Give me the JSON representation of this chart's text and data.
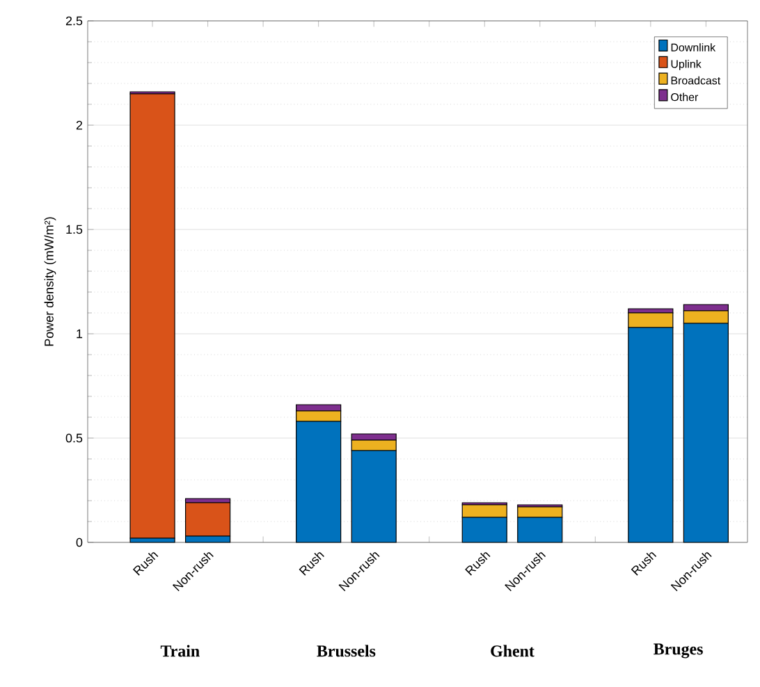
{
  "chart_data": {
    "type": "bar",
    "stacked": true,
    "ylabel": "Power density (mW/m²)",
    "categories": [
      "Rush",
      "Non-rush",
      null,
      "Rush",
      "Non-rush",
      null,
      "Rush",
      "Non-rush",
      null,
      "Rush",
      "Non-rush"
    ],
    "series": [
      {
        "name": "Downlink",
        "color": "#0072bd",
        "values": [
          0.02,
          0.03,
          null,
          0.58,
          0.44,
          null,
          0.12,
          0.12,
          null,
          1.03,
          1.05
        ]
      },
      {
        "name": "Uplink",
        "color": "#d95319",
        "values": [
          2.13,
          0.16,
          null,
          0,
          0,
          null,
          0,
          0,
          null,
          0,
          0
        ]
      },
      {
        "name": "Broadcast",
        "color": "#edb120",
        "values": [
          0,
          0,
          null,
          0.05,
          0.05,
          null,
          0.06,
          0.05,
          null,
          0.07,
          0.06
        ]
      },
      {
        "name": "Other",
        "color": "#7e2f8e",
        "values": [
          0.01,
          0.02,
          null,
          0.03,
          0.03,
          null,
          0.01,
          0.01,
          null,
          0.02,
          0.03
        ]
      }
    ],
    "ylim": [
      0,
      2.5
    ],
    "yticks": [
      0,
      0.5,
      1,
      1.5,
      2,
      2.5
    ],
    "grid": "y",
    "legend": "top right",
    "annotations": [
      "Train",
      "Brussels",
      "Ghent",
      "Bruges"
    ]
  }
}
